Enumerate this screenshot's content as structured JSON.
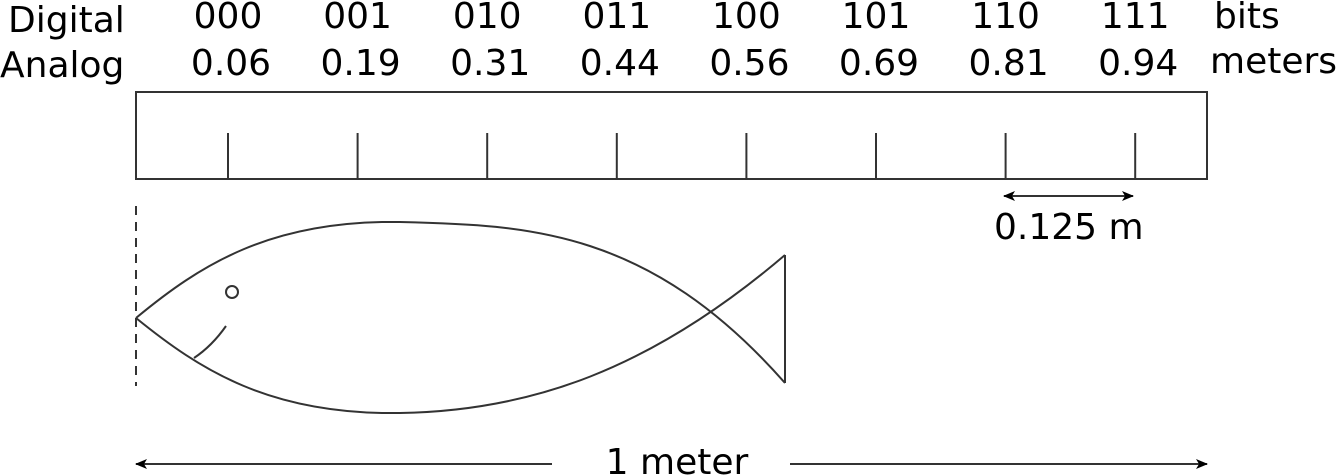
{
  "row_labels": {
    "digital": "Digital",
    "analog": "Analog"
  },
  "units": {
    "digital": "bits",
    "analog": "meters"
  },
  "bins": [
    {
      "bits": "000",
      "meters": "0.06"
    },
    {
      "bits": "001",
      "meters": "0.19"
    },
    {
      "bits": "010",
      "meters": "0.31"
    },
    {
      "bits": "011",
      "meters": "0.44"
    },
    {
      "bits": "100",
      "meters": "0.56"
    },
    {
      "bits": "101",
      "meters": "0.69"
    },
    {
      "bits": "110",
      "meters": "0.81"
    },
    {
      "bits": "111",
      "meters": "0.94"
    }
  ],
  "spacing_label": "0.125 m",
  "length_label": "1 meter",
  "fish_length_m": 0.6
}
